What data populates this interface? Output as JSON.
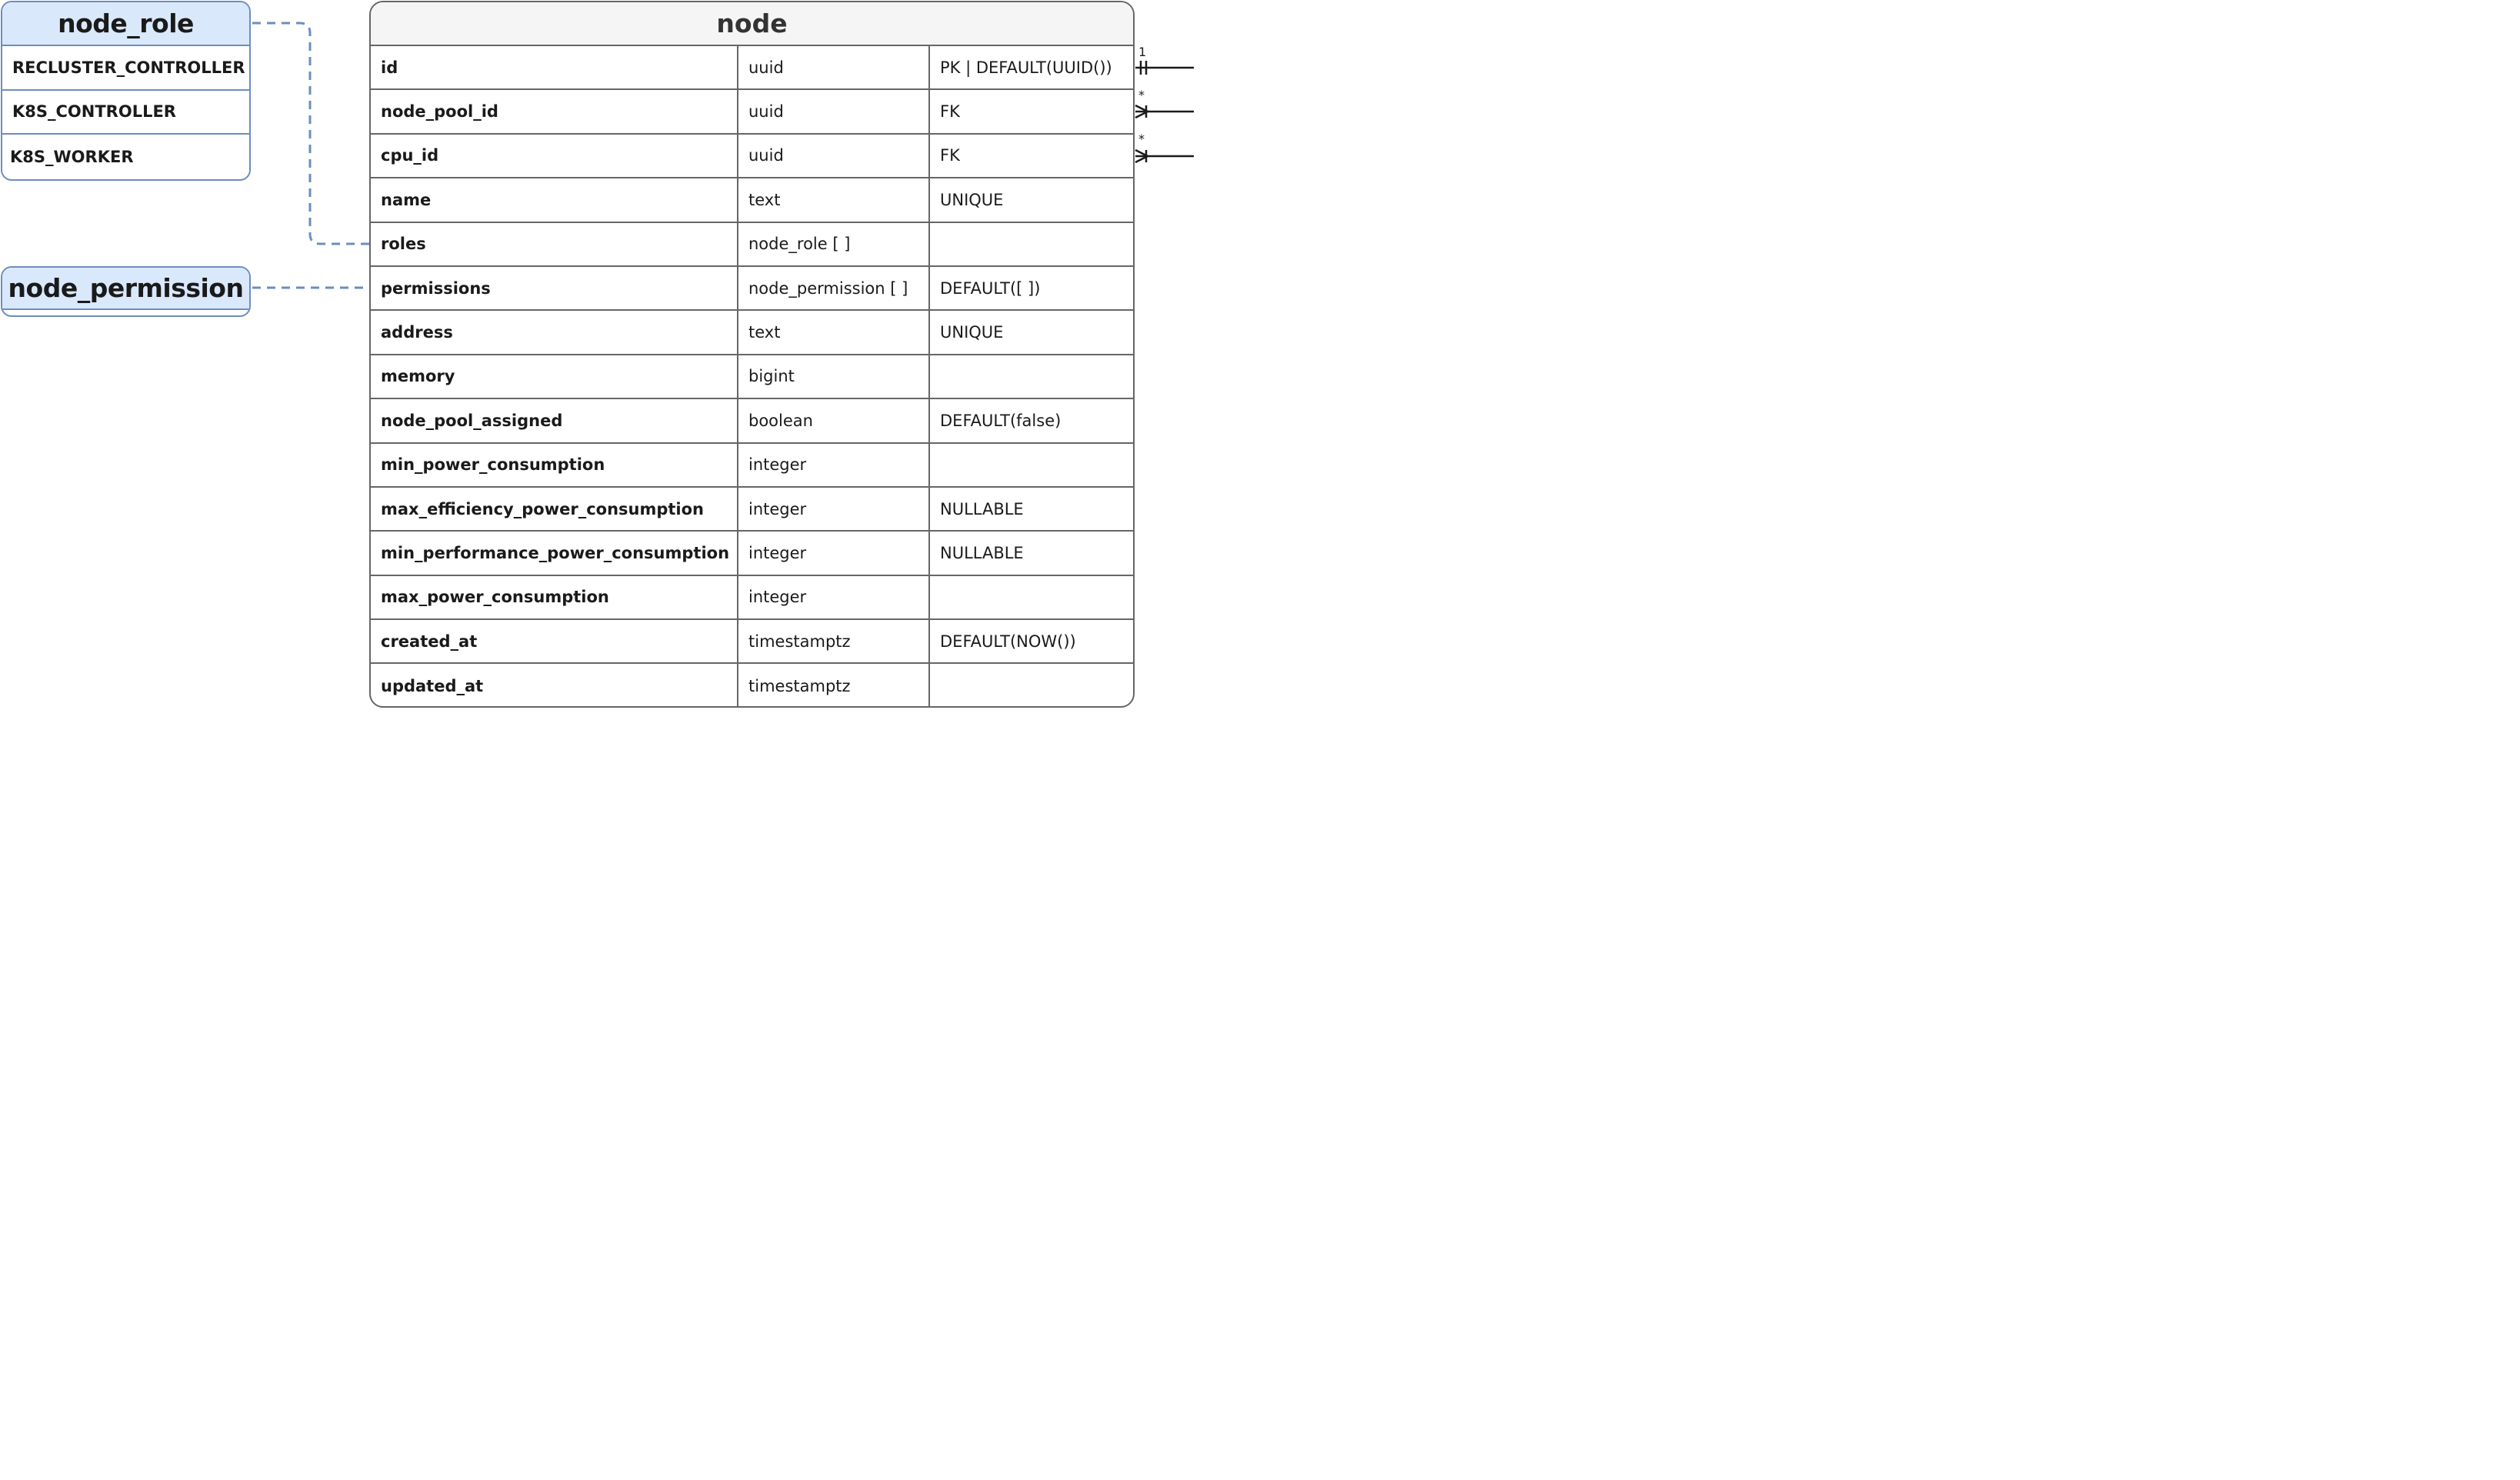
{
  "enums": [
    {
      "name": "node_role",
      "values": [
        "RECLUSTER_CONTROLLER",
        "K8S_CONTROLLER",
        "K8S_WORKER"
      ]
    },
    {
      "name": "node_permission",
      "values": []
    }
  ],
  "table": {
    "name": "node",
    "rows": [
      {
        "name": "id",
        "type": "uuid",
        "constraints": "PK | DEFAULT(UUID())"
      },
      {
        "name": "node_pool_id",
        "type": "uuid",
        "constraints": "FK"
      },
      {
        "name": "cpu_id",
        "type": "uuid",
        "constraints": "FK"
      },
      {
        "name": "name",
        "type": "text",
        "constraints": "UNIQUE"
      },
      {
        "name": "roles",
        "type": "node_role [ ]",
        "constraints": ""
      },
      {
        "name": "permissions",
        "type": "node_permission [ ]",
        "constraints": "DEFAULT([ ])"
      },
      {
        "name": "address",
        "type": "text",
        "constraints": "UNIQUE"
      },
      {
        "name": "memory",
        "type": "bigint",
        "constraints": ""
      },
      {
        "name": "node_pool_assigned",
        "type": "boolean",
        "constraints": "DEFAULT(false)"
      },
      {
        "name": "min_power_consumption",
        "type": "integer",
        "constraints": ""
      },
      {
        "name": "max_efficiency_power_consumption",
        "type": "integer",
        "constraints": "NULLABLE"
      },
      {
        "name": "min_performance_power_consumption",
        "type": "integer",
        "constraints": "NULLABLE"
      },
      {
        "name": "max_power_consumption",
        "type": "integer",
        "constraints": ""
      },
      {
        "name": "created_at",
        "type": "timestamptz",
        "constraints": "DEFAULT(NOW())"
      },
      {
        "name": "updated_at",
        "type": "timestamptz",
        "constraints": ""
      }
    ]
  },
  "relations": [
    {
      "field": "id",
      "cardinality": "1"
    },
    {
      "field": "node_pool_id",
      "cardinality": "*"
    },
    {
      "field": "cpu_id",
      "cardinality": "*"
    }
  ],
  "colors": {
    "enum_header": "#dae8fc",
    "enum_border": "#6c8ebf",
    "table_border": "#666666",
    "table_header": "#f5f5f5",
    "connector_dashed": "#6c8ebf"
  }
}
